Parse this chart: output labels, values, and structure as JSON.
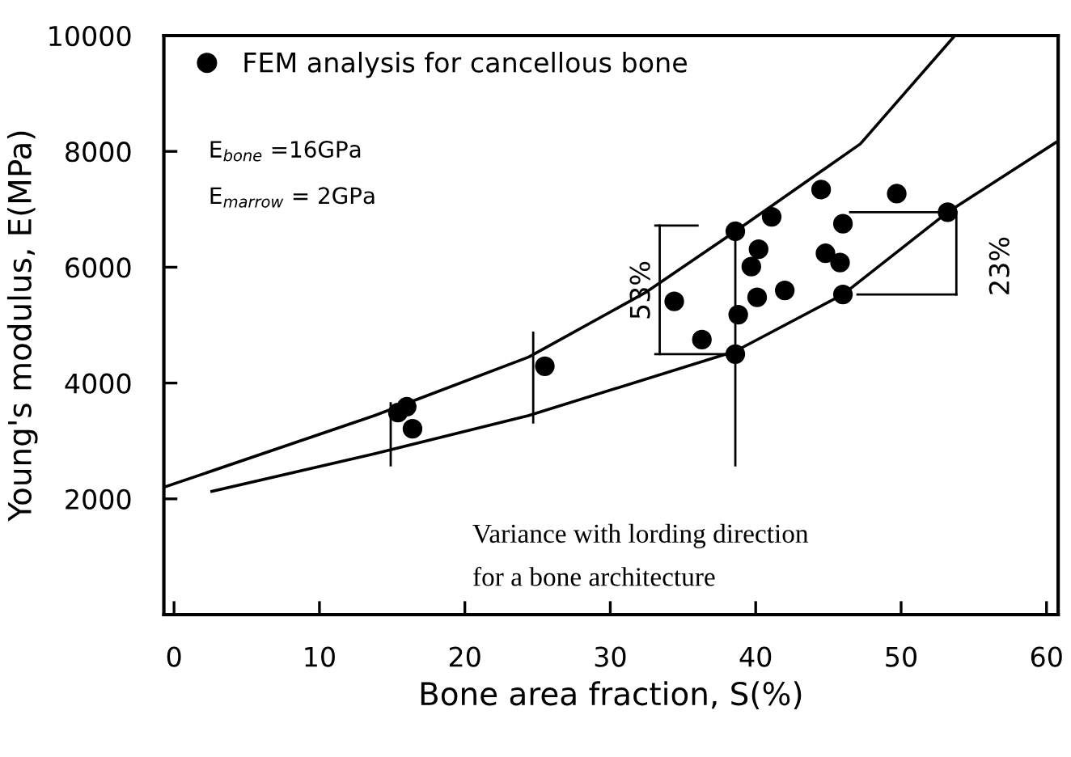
{
  "chart_data": {
    "type": "scatter",
    "xlabel": "Bone area fraction, S(%)",
    "ylabel": "Young's modulus, E(MPa)",
    "xlim": [
      -0.7,
      60.8
    ],
    "ylim": [
      0,
      10000
    ],
    "xticks": [
      0,
      10,
      20,
      30,
      40,
      50,
      60
    ],
    "yticks": [
      2000,
      4000,
      6000,
      8000,
      10000
    ],
    "grid": false,
    "legend": "top left",
    "marker": "circle",
    "series": [
      {
        "name": "FEM analysis for cancellous bone",
        "color": "#000000",
        "x": [
          15.4,
          16.0,
          16.4,
          25.5,
          34.4,
          36.3,
          38.6,
          38.8,
          38.6,
          39.7,
          40.2,
          40.1,
          41.1,
          42.0,
          44.5,
          44.8,
          45.8,
          46.0,
          46.0,
          49.7,
          53.2
        ],
        "values": [
          3490,
          3590,
          3210,
          4290,
          5410,
          4750,
          6620,
          5180,
          4500,
          6010,
          6310,
          5480,
          6870,
          5600,
          7340,
          6240,
          6080,
          6750,
          5530,
          7270,
          6950
        ]
      },
      {
        "type": "line",
        "color": "#000000",
        "marker": "none",
        "x": [
          -0.7,
          13.8,
          24.4,
          32.4,
          38.6,
          47.2,
          53.7
        ],
        "values": [
          2200,
          3440,
          4450,
          5560,
          6620,
          8130,
          10000
        ]
      },
      {
        "type": "line",
        "color": "#000000",
        "marker": "none",
        "x": [
          2.6,
          13.8,
          24.4,
          38.6,
          46.0,
          53.2,
          60.8
        ],
        "values": [
          2130,
          2780,
          3440,
          4550,
          5530,
          6950,
          8180
        ]
      }
    ],
    "annotations": [
      "E$_{bone}$ =16GPa",
      "E$_{marrow}$ = 2GPa",
      "53%",
      {
        "text": "23%",
        "x": 53.2,
        "y": 6950
      },
      "Variance with lording direction\nfor a bone architecture"
    ]
  }
}
